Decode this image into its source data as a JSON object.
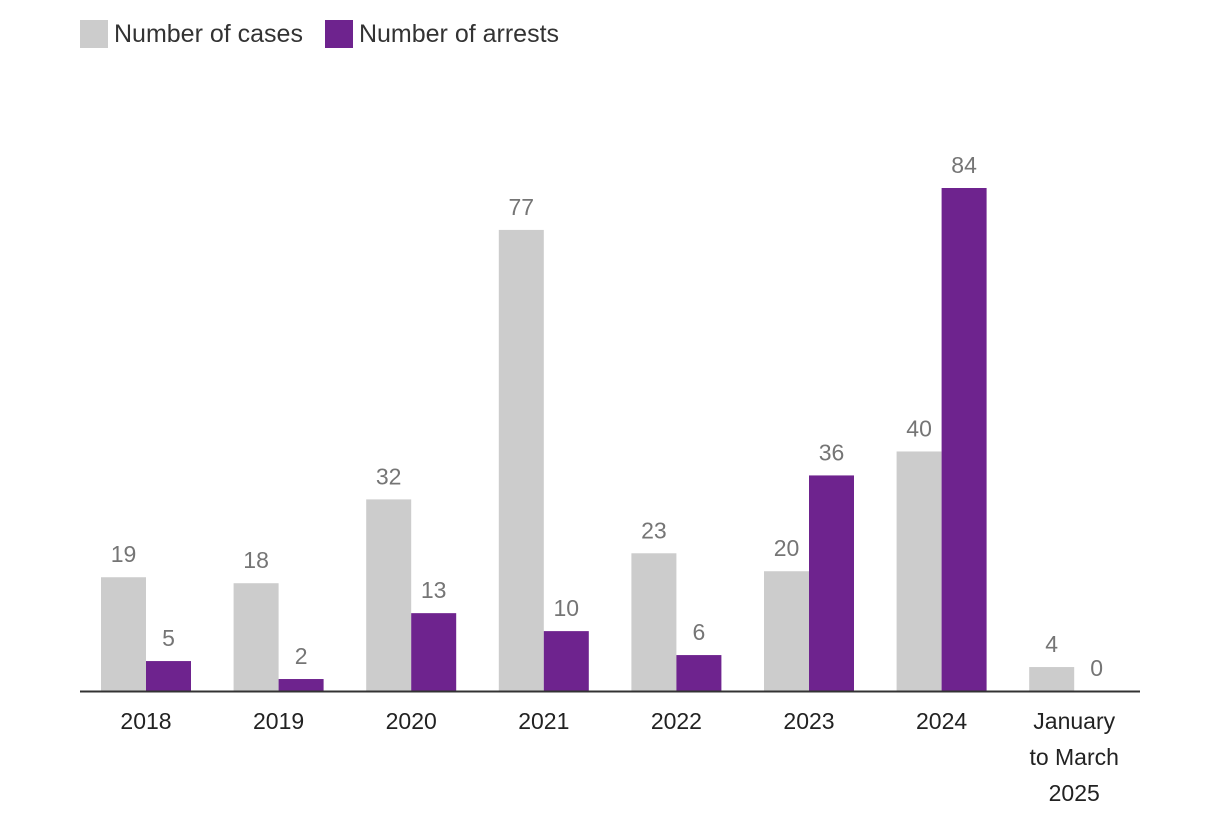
{
  "chart_data": {
    "type": "bar",
    "categories": [
      "2018",
      "2019",
      "2020",
      "2021",
      "2022",
      "2023",
      "2024",
      "January to March 2025"
    ],
    "series": [
      {
        "name": "Number of cases",
        "color": "#cccccc",
        "values": [
          19,
          18,
          32,
          77,
          23,
          20,
          40,
          4
        ]
      },
      {
        "name": "Number of arrests",
        "color": "#6e238e",
        "values": [
          5,
          2,
          13,
          10,
          6,
          36,
          84,
          0
        ]
      }
    ],
    "title": "",
    "xlabel": "",
    "ylabel": "",
    "ylim": [
      0,
      84
    ],
    "grid": false,
    "legend": "top-left",
    "value_labels": true
  }
}
